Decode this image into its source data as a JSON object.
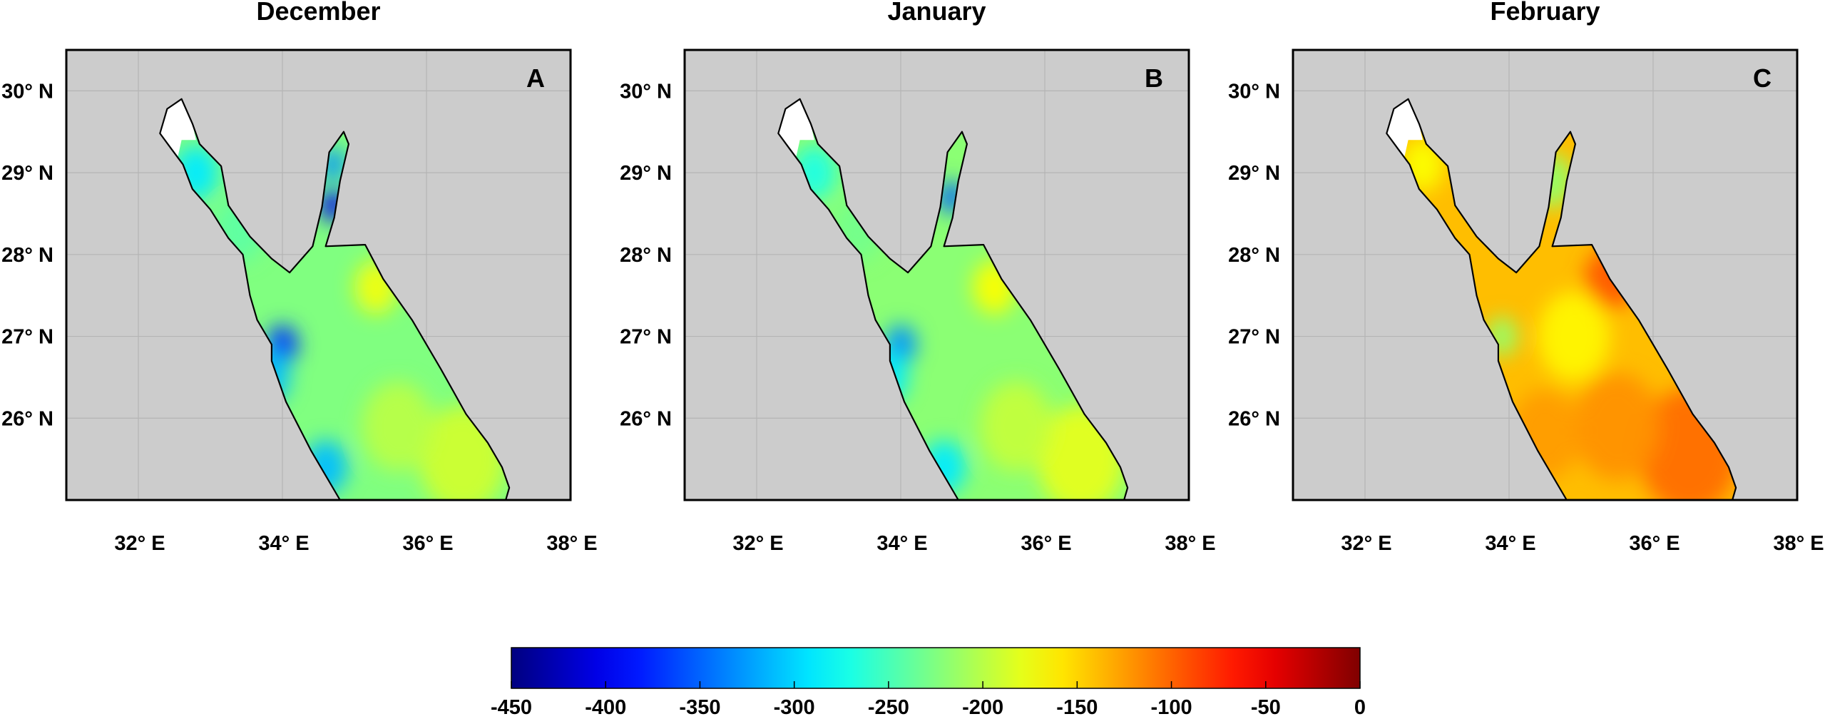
{
  "chart_data": {
    "type": "heatmap",
    "colormap": "jet",
    "background_color": "#cccccc",
    "coastline_color": "#000000",
    "land_fill_white": true,
    "grid": true,
    "colorbar": {
      "orientation": "horizontal",
      "placement": "bottom-center",
      "range": [
        -450,
        0
      ],
      "ticks": [
        "-450",
        "-400",
        "-350",
        "-300",
        "-250",
        "-200",
        "-150",
        "-100",
        "-50",
        "0"
      ],
      "tick_values": [
        -450,
        -400,
        -350,
        -300,
        -250,
        -200,
        -150,
        -100,
        -50,
        0
      ]
    },
    "lon_range": [
      31.0,
      38.0
    ],
    "lat_range": [
      25.0,
      30.5
    ],
    "lon_ticks": [
      32,
      34,
      36,
      38
    ],
    "lon_tick_labels": [
      "32° E",
      "34° E",
      "36° E",
      "38° E"
    ],
    "lat_ticks": [
      30,
      29,
      28,
      27,
      26
    ],
    "lat_tick_labels": [
      "30° N",
      "29° N",
      "28° N",
      "27° N",
      "26° N"
    ],
    "panels": [
      {
        "title": "December",
        "letter": "A",
        "base_value": -225,
        "features": [
          {
            "lon": 34.7,
            "lat": 28.6,
            "value": -400,
            "radius": 0.18
          },
          {
            "lon": 34.7,
            "lat": 29.1,
            "value": -330,
            "radius": 0.18
          },
          {
            "lon": 34.0,
            "lat": 26.9,
            "value": -370,
            "radius": 0.22
          },
          {
            "lon": 33.8,
            "lat": 26.5,
            "value": -310,
            "radius": 0.3
          },
          {
            "lon": 34.6,
            "lat": 25.4,
            "value": -310,
            "radius": 0.3
          },
          {
            "lon": 35.3,
            "lat": 27.6,
            "value": -175,
            "radius": 0.3
          },
          {
            "lon": 36.5,
            "lat": 25.5,
            "value": -190,
            "radius": 0.6
          },
          {
            "lon": 35.6,
            "lat": 25.9,
            "value": -200,
            "radius": 0.5
          },
          {
            "lon": 32.8,
            "lat": 29.0,
            "value": -290,
            "radius": 0.3
          },
          {
            "lon": 33.4,
            "lat": 28.3,
            "value": -240,
            "radius": 0.35
          }
        ]
      },
      {
        "title": "January",
        "letter": "B",
        "base_value": -220,
        "features": [
          {
            "lon": 34.7,
            "lat": 28.7,
            "value": -350,
            "radius": 0.18
          },
          {
            "lon": 34.0,
            "lat": 26.9,
            "value": -330,
            "radius": 0.22
          },
          {
            "lon": 33.8,
            "lat": 26.5,
            "value": -290,
            "radius": 0.3
          },
          {
            "lon": 34.6,
            "lat": 25.4,
            "value": -290,
            "radius": 0.3
          },
          {
            "lon": 35.3,
            "lat": 27.6,
            "value": -170,
            "radius": 0.3
          },
          {
            "lon": 36.5,
            "lat": 25.5,
            "value": -180,
            "radius": 0.6
          },
          {
            "lon": 35.6,
            "lat": 25.9,
            "value": -195,
            "radius": 0.5
          },
          {
            "lon": 32.8,
            "lat": 29.0,
            "value": -270,
            "radius": 0.3
          },
          {
            "lon": 33.4,
            "lat": 28.3,
            "value": -230,
            "radius": 0.35
          }
        ]
      },
      {
        "title": "February",
        "letter": "C",
        "base_value": -140,
        "features": [
          {
            "lon": 35.4,
            "lat": 27.7,
            "value": -95,
            "radius": 0.35
          },
          {
            "lon": 36.5,
            "lat": 25.6,
            "value": -105,
            "radius": 0.7
          },
          {
            "lon": 35.5,
            "lat": 25.9,
            "value": -120,
            "radius": 0.6
          },
          {
            "lon": 34.5,
            "lat": 25.8,
            "value": -125,
            "radius": 0.5
          },
          {
            "lon": 34.9,
            "lat": 27.0,
            "value": -165,
            "radius": 0.5
          },
          {
            "lon": 33.9,
            "lat": 27.0,
            "value": -215,
            "radius": 0.22
          },
          {
            "lon": 34.6,
            "lat": 28.9,
            "value": -215,
            "radius": 0.3
          },
          {
            "lon": 32.8,
            "lat": 29.1,
            "value": -170,
            "radius": 0.3
          }
        ]
      }
    ]
  }
}
